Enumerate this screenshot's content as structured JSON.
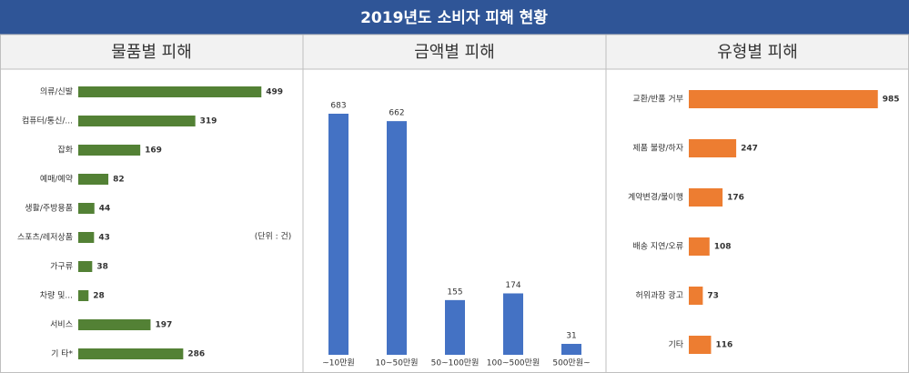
{
  "title": "2019년도 소비자 피해 현황",
  "chart_data": [
    {
      "type": "bar",
      "orientation": "horizontal",
      "title": "물품별 피해",
      "annotation": "(단위 : 건)",
      "categories": [
        "의류/신발",
        "컴퓨터/통신/...",
        "잡화",
        "예매/예약",
        "생활/주방용품",
        "스포츠/레저상품",
        "가구류",
        "차량 및...",
        "서비스",
        "기 타*"
      ],
      "values": [
        499,
        319,
        169,
        82,
        44,
        43,
        38,
        28,
        197,
        286
      ],
      "color": "#538135",
      "xlim": [
        0,
        600
      ]
    },
    {
      "type": "bar",
      "orientation": "vertical",
      "title": "금액별 피해",
      "categories": [
        "~10만원",
        "10~50만원",
        "50~100만원",
        "100~500만원",
        "500만원~"
      ],
      "values": [
        683,
        662,
        155,
        174,
        31
      ],
      "color": "#4472c4",
      "ylim": [
        0,
        750
      ]
    },
    {
      "type": "bar",
      "orientation": "horizontal",
      "title": "유형별 피해",
      "categories": [
        "교환/반품 거부",
        "제품 불량/하자",
        "계약변경/불이행",
        "배송 지연/오류",
        "허위과장 광고",
        "기타"
      ],
      "values": [
        985,
        247,
        176,
        108,
        73,
        116
      ],
      "color": "#ed7d31",
      "xlim": [
        0,
        1100
      ]
    }
  ]
}
